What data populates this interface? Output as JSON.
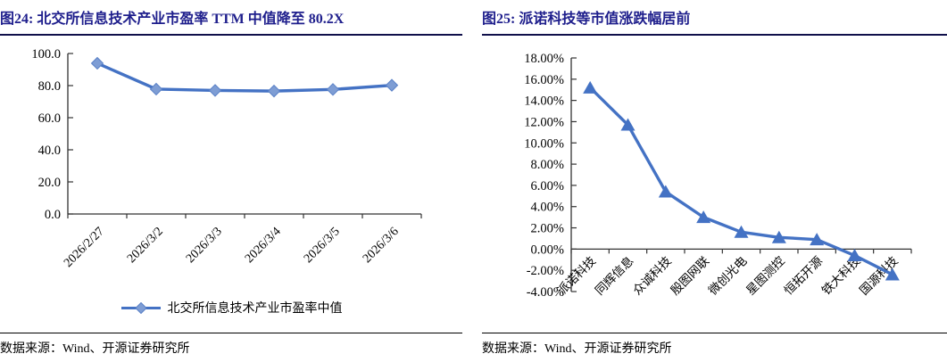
{
  "figures": [
    {
      "id": "fig24",
      "title": "图24:  北交所信息技术产业市盈率 TTM 中值降至 80.2X",
      "legend_label": "北交所信息技术产业市盈率中值",
      "source": "数据来源：Wind、开源证券研究所"
    },
    {
      "id": "fig25",
      "title": "图25:  派诺科技等市值涨跌幅居前",
      "source": "数据来源：Wind、开源证券研究所"
    }
  ],
  "colors": {
    "title_text": "#1e1e8c",
    "title_rule": "#10104a",
    "source_rule": "#000000",
    "axis": "#333333",
    "line_blue": "#4472c4",
    "marker_light_blue": "#7e9dd4",
    "marker_edge_blue": "#5a81c7"
  },
  "chart_data": [
    {
      "type": "line",
      "title": "北交所信息技术产业市盈率TTM中值降至80.2X",
      "categories": [
        "2026/2/27",
        "2026/3/2",
        "2026/3/3",
        "2026/3/4",
        "2026/3/5",
        "2026/3/6"
      ],
      "series": [
        {
          "name": "北交所信息技术产业市盈率中值",
          "values": [
            93.9,
            77.8,
            77.0,
            76.6,
            77.6,
            80.2
          ]
        }
      ],
      "xlabel": "",
      "ylabel": "",
      "ylim": [
        0,
        100
      ],
      "ytick_step": 20,
      "ytick_format": "fixed1",
      "marker": "diamond",
      "grid": false,
      "legend_position": "bottom",
      "line_color": "#4472c4",
      "marker_color": "#7e9dd4"
    },
    {
      "type": "line",
      "title": "派诺科技等市值涨跌幅居前",
      "categories": [
        "派诺科技",
        "同辉信息",
        "众诚科技",
        "殷图网联",
        "微创光电",
        "星图测控",
        "恒拓开源",
        "铁大科技",
        "国源科技"
      ],
      "series": [
        {
          "name": "市值涨跌幅",
          "values": [
            15.2,
            11.7,
            5.4,
            3.0,
            1.6,
            1.1,
            0.9,
            -0.6,
            -2.4
          ]
        }
      ],
      "unit": "%",
      "xlabel": "",
      "ylabel": "",
      "ylim": [
        -4,
        18
      ],
      "ytick_step": 2,
      "ytick_format": "pct2",
      "marker": "triangle",
      "grid": false,
      "legend_position": "none",
      "line_color": "#4472c4",
      "marker_color": "#4472c4"
    }
  ]
}
